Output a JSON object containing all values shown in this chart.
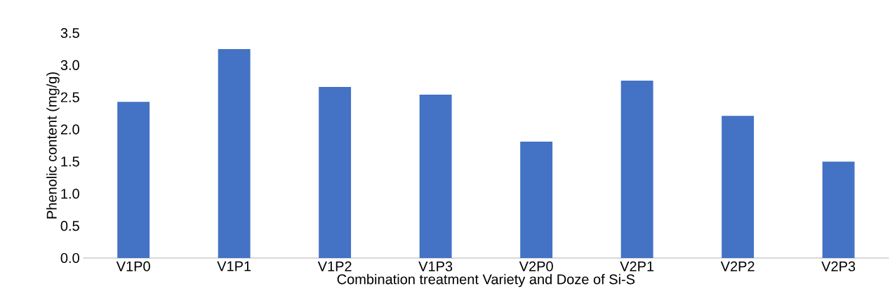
{
  "chart_data": {
    "type": "bar",
    "xlabel": "Combination treatment Variety and Doze of Si-S",
    "ylabel": "Phenolic content (mg/g)",
    "categories": [
      "V1P0",
      "V1P1",
      "V1P2",
      "V1P3",
      "V2P0",
      "V2P1",
      "V2P2",
      "V2P3"
    ],
    "values": [
      2.43,
      3.25,
      2.66,
      2.54,
      1.81,
      2.76,
      2.21,
      1.5
    ],
    "color": "#4472c4",
    "ylim": [
      0,
      3.5
    ],
    "yticks": [
      {
        "value": 0,
        "label": "0.0"
      },
      {
        "value": 0.5,
        "label": "0.5"
      },
      {
        "value": 1,
        "label": "1.0"
      },
      {
        "value": 1.5,
        "label": "1.5"
      },
      {
        "value": 2,
        "label": "2.0"
      },
      {
        "value": 2.5,
        "label": "2.5"
      },
      {
        "value": 3,
        "label": "3.0"
      },
      {
        "value": 3.5,
        "label": "3.5"
      }
    ],
    "grid": false
  }
}
